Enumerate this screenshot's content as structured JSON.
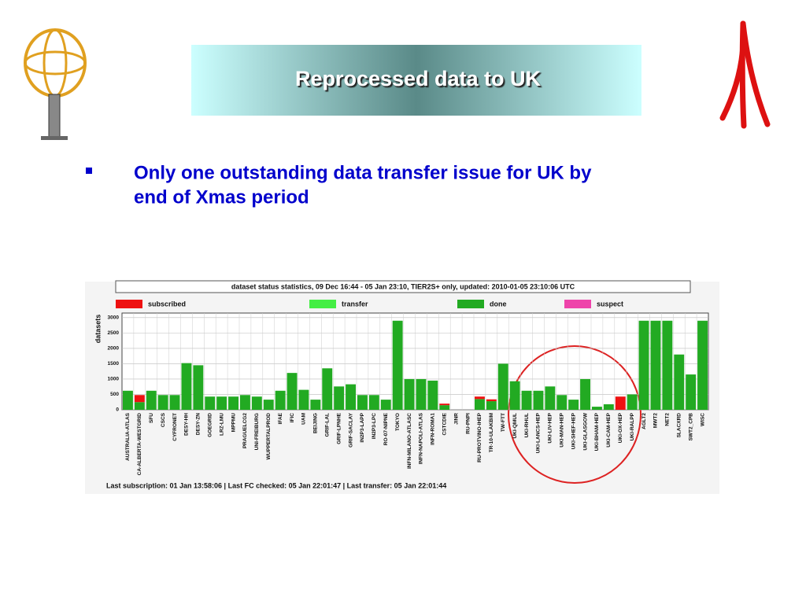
{
  "title": "Reprocessed data to UK",
  "bullet": [
    "Only one outstanding data transfer issue for UK by",
    "end of Xmas period"
  ],
  "chart_data": {
    "type": "bar",
    "stacked": true,
    "title": "dataset status statistics, 09 Dec 16:44 - 05 Jan 23:10, TIER2S+ only, updated: 2010-01-05 23:10:06 UTC",
    "y_label": "datasets",
    "footer": "Last subscription: 01 Jan 13:58:06  |  Last FC checked: 05 Jan 22:01:47  |  Last transfer: 05 Jan 22:01:44",
    "ylim": [
      0,
      3150
    ],
    "yticks": [
      0,
      500,
      1000,
      1500,
      2000,
      2500,
      3000
    ],
    "grid": true,
    "categories": [
      "AUSTRALIA-ATLAS",
      "CA-ALBERTA-WESTGRID",
      "SFU",
      "CSCS",
      "CYFRONET",
      "DESY-HH",
      "DESY-ZN",
      "GOEGRID",
      "LRZ-LMU",
      "MPPMU",
      "PRAGUELCG2",
      "UNI-FREIBURG",
      "WUPPERTALPROD",
      "IFAE",
      "IFIC",
      "UAM",
      "BEIJING",
      "GRIF-LAL",
      "GRIF-LPNHE",
      "GRIF-SACLAY",
      "IN2P3-LAPP",
      "IN2P3-LPC",
      "RO-07-NIPNE",
      "TOKYO",
      "INFN-MILANO-ATLASC",
      "INFN-NAPOLI-ATLAS",
      "INFN-ROMA1",
      "CSTCDIE",
      "JINR",
      "RU-PNPI",
      "RU-PROTVINO-IHEP",
      "TR-10-ULAKBIM",
      "TW-FTT",
      "UKI-QMUL",
      "UKI-RHUL",
      "UKI-LANCS-HEP",
      "UKI-LIV-HEP",
      "UKI-MAN-HEP",
      "UKI-SHEF-HEP",
      "UKI-GLASGOW",
      "UKI-BHAM-HEP",
      "UKI-CAM-HEP",
      "UKI-OX-HEP",
      "UKI-RALPP",
      "AGLT2",
      "MWT2",
      "NET2",
      "SLACXRD",
      "SWT2_CPB",
      "WISC"
    ],
    "series": [
      {
        "name": "subscribed",
        "color": "#ee1111",
        "values": [
          0,
          230,
          0,
          0,
          0,
          0,
          0,
          0,
          0,
          0,
          0,
          0,
          0,
          0,
          0,
          0,
          0,
          0,
          0,
          0,
          0,
          0,
          0,
          0,
          0,
          0,
          0,
          50,
          0,
          0,
          80,
          60,
          0,
          0,
          0,
          0,
          0,
          0,
          0,
          0,
          0,
          0,
          430,
          0,
          0,
          0,
          0,
          0,
          0,
          0
        ]
      },
      {
        "name": "transfer",
        "color": "#44ee44",
        "values": [
          0,
          0,
          0,
          0,
          0,
          0,
          0,
          0,
          0,
          0,
          0,
          0,
          0,
          0,
          0,
          0,
          0,
          0,
          0,
          0,
          0,
          0,
          0,
          0,
          0,
          0,
          0,
          0,
          0,
          0,
          0,
          0,
          0,
          0,
          0,
          0,
          0,
          0,
          0,
          0,
          0,
          0,
          0,
          0,
          0,
          0,
          0,
          0,
          0,
          0
        ]
      },
      {
        "name": "done",
        "color": "#22aa22",
        "values": [
          620,
          250,
          620,
          480,
          480,
          1520,
          1450,
          430,
          430,
          430,
          480,
          430,
          330,
          620,
          1200,
          650,
          330,
          1350,
          760,
          830,
          480,
          480,
          330,
          2900,
          1000,
          1000,
          950,
          150,
          0,
          0,
          350,
          280,
          1500,
          930,
          620,
          620,
          760,
          480,
          330,
          1000,
          100,
          180,
          0,
          500,
          2900,
          2900,
          2900,
          1800,
          1150,
          2900
        ]
      },
      {
        "name": "suspect",
        "color": "#ee44aa",
        "values": [
          0,
          0,
          0,
          0,
          0,
          0,
          0,
          0,
          0,
          0,
          0,
          0,
          0,
          0,
          0,
          0,
          0,
          0,
          0,
          0,
          0,
          0,
          0,
          0,
          0,
          0,
          0,
          0,
          0,
          0,
          0,
          0,
          0,
          0,
          0,
          0,
          0,
          0,
          0,
          0,
          0,
          0,
          0,
          0,
          0,
          0,
          0,
          0,
          0,
          0
        ]
      }
    ]
  }
}
